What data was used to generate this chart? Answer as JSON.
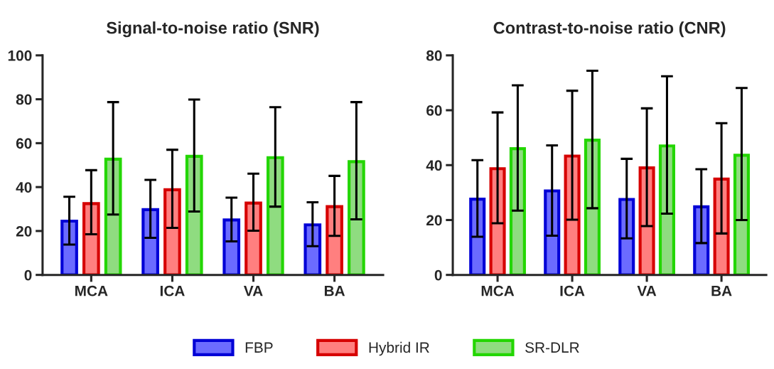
{
  "chart_data": [
    {
      "type": "bar",
      "title": "Signal-to-noise ratio (SNR)",
      "categories": [
        "MCA",
        "ICA",
        "VA",
        "BA"
      ],
      "ylim": [
        0,
        100
      ],
      "yticks": [
        0,
        20,
        40,
        60,
        80,
        100
      ],
      "grid": false,
      "legend": "bottom",
      "series": [
        {
          "name": "FBP",
          "color": "#6b6bff",
          "values": [
            24.5,
            29.7,
            25.0,
            22.8
          ],
          "errors": [
            [
              13.8,
              35.6
            ],
            [
              16.9,
              43.3
            ],
            [
              15.3,
              35.2
            ],
            [
              13.1,
              33.1
            ]
          ]
        },
        {
          "name": "Hybrid IR",
          "color": "#ff7f7f",
          "values": [
            32.5,
            38.8,
            32.7,
            31.1
          ],
          "errors": [
            [
              18.5,
              47.7
            ],
            [
              21.4,
              57.0
            ],
            [
              20.1,
              46.1
            ],
            [
              17.8,
              45.1
            ]
          ]
        },
        {
          "name": "SR-DLR",
          "color": "#8fdc80",
          "values": [
            52.7,
            54.0,
            53.4,
            51.6
          ],
          "errors": [
            [
              27.5,
              78.7
            ],
            [
              28.9,
              79.9
            ],
            [
              31.1,
              76.4
            ],
            [
              25.3,
              78.7
            ]
          ]
        }
      ]
    },
    {
      "type": "bar",
      "title": "Contrast-to-noise ratio (CNR)",
      "categories": [
        "MCA",
        "ICA",
        "VA",
        "BA"
      ],
      "ylim": [
        0,
        80
      ],
      "yticks": [
        0,
        20,
        40,
        60,
        80
      ],
      "grid": false,
      "series": [
        {
          "color": "#6b6bff",
          "values": [
            27.6,
            30.6,
            27.5,
            24.8
          ],
          "errors": [
            [
              13.9,
              41.8
            ],
            [
              14.3,
              47.2
            ],
            [
              13.3,
              42.3
            ],
            [
              11.6,
              38.5
            ]
          ]
        },
        {
          "color": "#ff7f7f",
          "values": [
            38.7,
            43.3,
            39.0,
            34.9
          ],
          "errors": [
            [
              18.8,
              59.2
            ],
            [
              20.1,
              67.1
            ],
            [
              17.8,
              60.7
            ],
            [
              15.1,
              55.3
            ]
          ]
        },
        {
          "color": "#8fdc80",
          "values": [
            46.0,
            49.1,
            47.0,
            43.6
          ],
          "errors": [
            [
              23.4,
              69.1
            ],
            [
              24.3,
              74.4
            ],
            [
              22.3,
              72.4
            ],
            [
              20.0,
              68.1
            ]
          ]
        }
      ]
    }
  ]
}
